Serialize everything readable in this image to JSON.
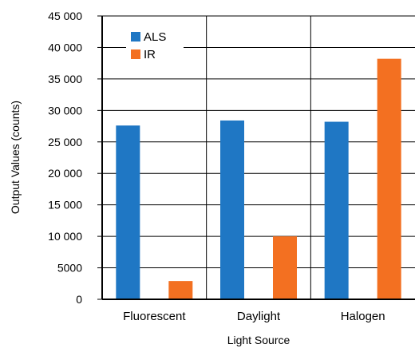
{
  "chart_data": {
    "type": "bar",
    "categories": [
      "Fluorescent",
      "Daylight",
      "Halogen"
    ],
    "series": [
      {
        "name": "ALS",
        "values": [
          27600,
          28400,
          28200
        ],
        "color": "#1f77c4"
      },
      {
        "name": "IR",
        "values": [
          2900,
          10000,
          38200
        ],
        "color": "#f37021"
      }
    ],
    "xlabel": "Light Source",
    "ylabel": "Output Values (counts)",
    "ylim": [
      0,
      45000
    ],
    "yticks": [
      0,
      5000,
      10000,
      15000,
      20000,
      25000,
      30000,
      35000,
      40000,
      45000
    ],
    "ytick_labels": [
      "0",
      "5000",
      "10 000",
      "15 000",
      "20 000",
      "25 000",
      "30 000",
      "35 000",
      "40 000",
      "45 000"
    ],
    "grid": true,
    "legend_position": "top-left"
  }
}
